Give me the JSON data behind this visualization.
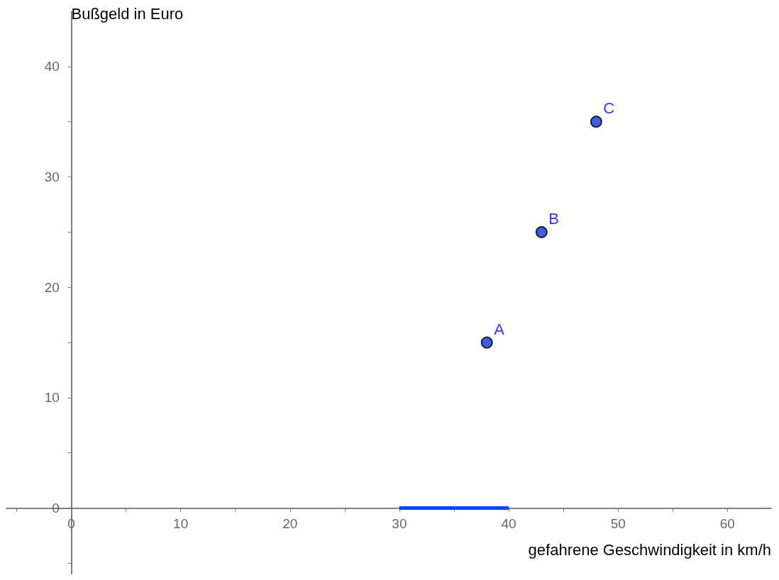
{
  "chart_data": {
    "type": "scatter",
    "xlabel": "gefahrene Geschwindigkeit in km/h",
    "ylabel": "Bußgeld in Euro",
    "xlim": [
      -6,
      64
    ],
    "ylim": [
      -6,
      45
    ],
    "xticks": [
      {
        "value": -5,
        "label": null
      },
      0,
      {
        "value": 5,
        "label": null
      },
      10,
      {
        "value": 15,
        "label": null
      },
      20,
      {
        "value": 25,
        "label": null
      },
      30,
      {
        "value": 35,
        "label": null
      },
      40,
      {
        "value": 45,
        "label": null
      },
      50,
      {
        "value": 55,
        "label": null
      },
      60
    ],
    "yticks": [
      {
        "value": -5,
        "label": null
      },
      0,
      {
        "value": 5,
        "label": null
      },
      10,
      {
        "value": 15,
        "label": null
      },
      20,
      {
        "value": 25,
        "label": null
      },
      30,
      {
        "value": 35,
        "label": null
      },
      40
    ],
    "marker": "circle",
    "series": [
      {
        "color": "#1133dd",
        "x": [
          38,
          43,
          48
        ],
        "values": [
          15,
          25,
          35
        ]
      },
      {
        "type": "line",
        "color": "#0044ff",
        "x": [
          30,
          40
        ],
        "values": [
          0,
          0
        ],
        "marker": "none"
      }
    ],
    "annotations": [
      {
        "text": "A",
        "x": 38,
        "y": 15
      },
      {
        "text": "B",
        "x": 43,
        "y": 25
      },
      {
        "text": "C",
        "x": 48,
        "y": 35
      }
    ]
  }
}
